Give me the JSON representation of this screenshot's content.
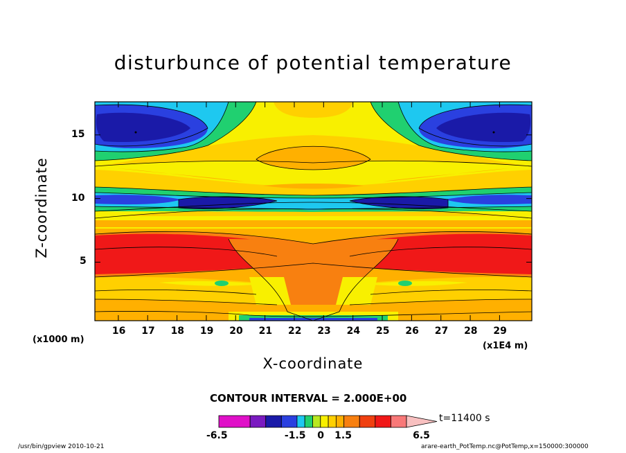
{
  "title": "disturbunce of potential temperature",
  "chart_data": {
    "type": "heatmap",
    "title": "disturbunce of potential temperature",
    "xlabel": "X-coordinate",
    "ylabel": "Z-coordinate",
    "x_unit_left": "(x1000 m)",
    "x_unit_right": "(x1E4 m)",
    "xlim": [
      15.2,
      30.1
    ],
    "ylim": [
      0.4,
      17.6
    ],
    "x_ticks": [
      16,
      17,
      18,
      19,
      20,
      21,
      22,
      23,
      24,
      25,
      26,
      27,
      28,
      29
    ],
    "y_ticks": [
      5,
      10,
      15
    ],
    "contour_interval": "CONTOUR INTERVAL = 2.000E+00",
    "time": "t=11400 s",
    "colorbar": {
      "levels": [
        -6.5,
        -4.5,
        -3.5,
        -2.5,
        -1.5,
        -1,
        -0.5,
        0,
        0.5,
        1,
        1.5,
        2.5,
        3.5,
        4.5,
        5.5,
        6.5
      ],
      "labels": [
        "-6.5",
        "-1.5",
        "0",
        "1.5",
        "6.5"
      ],
      "colors": [
        "#e010c8",
        "#7a1ac0",
        "#1a1aa8",
        "#2a40e0",
        "#1ec8f0",
        "#20d070",
        "#b8e820",
        "#f8f000",
        "#ffd000",
        "#ffb000",
        "#f88010",
        "#f04010",
        "#f01818",
        "#f87878",
        "#f8c0c0"
      ]
    }
  },
  "footer": {
    "left": "/usr/bin/gpview   2010-10-21",
    "right": "arare-earth_PotTemp.nc@PotTemp,x=150000:300000"
  }
}
